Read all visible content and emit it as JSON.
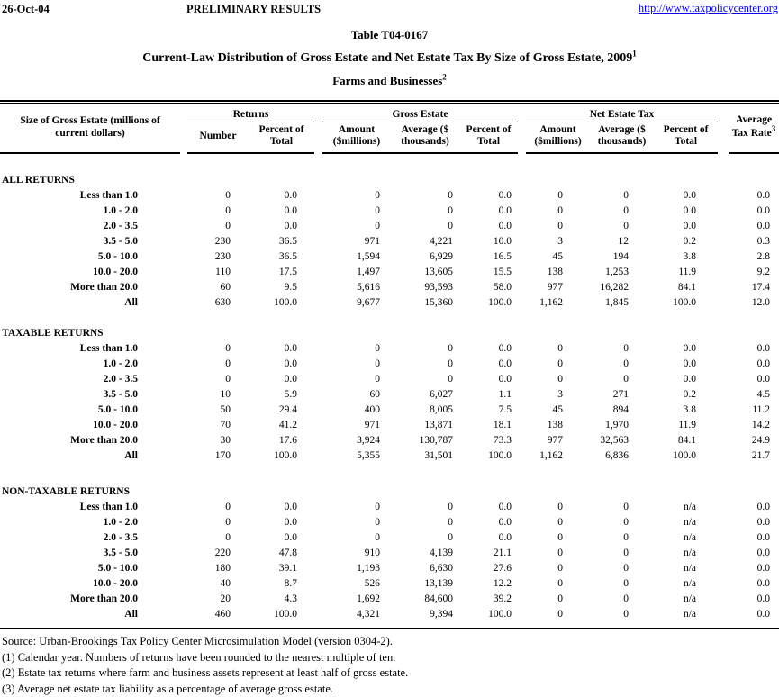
{
  "page": {
    "date": "26-Oct-04",
    "status_label": "PRELIMINARY RESULTS",
    "link": "http://www.taxpolicycenter.org",
    "link_color": "#0000EE"
  },
  "title": {
    "table_number": "Table T04-0167",
    "main": "Current-Law Distribution of Gross Estate and Net Estate Tax By Size of Gross Estate, 2009",
    "main_superscript": "1",
    "subtitle": "Farms and Businesses",
    "subtitle_superscript": "2"
  },
  "table": {
    "stub_header": "Size of Gross Estate (millions of current dollars)",
    "group_headers": {
      "returns": "Returns",
      "gross_estate": "Gross Estate",
      "net_estate_tax": "Net Estate Tax"
    },
    "sub_headers": {
      "number": "Number",
      "percent_of_total": "Percent of Total",
      "amount_millions": "Amount ($millions)",
      "average_thousands": "Average ($ thousands)"
    },
    "average_tax_rate_header": "Average Tax Rate",
    "average_tax_rate_superscript": "3",
    "sections": [
      {
        "label": "ALL RETURNS",
        "rows": [
          {
            "label": "Less than 1.0",
            "values": [
              "0",
              "0.0",
              "0",
              "0",
              "0.0",
              "0",
              "0",
              "0.0",
              "0.0"
            ]
          },
          {
            "label": "1.0 - 2.0",
            "values": [
              "0",
              "0.0",
              "0",
              "0",
              "0.0",
              "0",
              "0",
              "0.0",
              "0.0"
            ]
          },
          {
            "label": "2.0 - 3.5",
            "values": [
              "0",
              "0.0",
              "0",
              "0",
              "0.0",
              "0",
              "0",
              "0.0",
              "0.0"
            ]
          },
          {
            "label": "3.5 - 5.0",
            "values": [
              "230",
              "36.5",
              "971",
              "4,221",
              "10.0",
              "3",
              "12",
              "0.2",
              "0.3"
            ]
          },
          {
            "label": "5.0 - 10.0",
            "values": [
              "230",
              "36.5",
              "1,594",
              "6,929",
              "16.5",
              "45",
              "194",
              "3.8",
              "2.8"
            ]
          },
          {
            "label": "10.0 - 20.0",
            "values": [
              "110",
              "17.5",
              "1,497",
              "13,605",
              "15.5",
              "138",
              "1,253",
              "11.9",
              "9.2"
            ]
          },
          {
            "label": "More than 20.0",
            "values": [
              "60",
              "9.5",
              "5,616",
              "93,593",
              "58.0",
              "977",
              "16,282",
              "84.1",
              "17.4"
            ]
          },
          {
            "label": "All",
            "values": [
              "630",
              "100.0",
              "9,677",
              "15,360",
              "100.0",
              "1,162",
              "1,845",
              "100.0",
              "12.0"
            ]
          }
        ]
      },
      {
        "label": "TAXABLE RETURNS",
        "rows": [
          {
            "label": "Less than 1.0",
            "values": [
              "0",
              "0.0",
              "0",
              "0",
              "0.0",
              "0",
              "0",
              "0.0",
              "0.0"
            ]
          },
          {
            "label": "1.0 - 2.0",
            "values": [
              "0",
              "0.0",
              "0",
              "0",
              "0.0",
              "0",
              "0",
              "0.0",
              "0.0"
            ]
          },
          {
            "label": "2.0 - 3.5",
            "values": [
              "0",
              "0.0",
              "0",
              "0",
              "0.0",
              "0",
              "0",
              "0.0",
              "0.0"
            ]
          },
          {
            "label": "3.5 - 5.0",
            "values": [
              "10",
              "5.9",
              "60",
              "6,027",
              "1.1",
              "3",
              "271",
              "0.2",
              "4.5"
            ]
          },
          {
            "label": "5.0 - 10.0",
            "values": [
              "50",
              "29.4",
              "400",
              "8,005",
              "7.5",
              "45",
              "894",
              "3.8",
              "11.2"
            ]
          },
          {
            "label": "10.0 - 20.0",
            "values": [
              "70",
              "41.2",
              "971",
              "13,871",
              "18.1",
              "138",
              "1,970",
              "11.9",
              "14.2"
            ]
          },
          {
            "label": "More than 20.0",
            "values": [
              "30",
              "17.6",
              "3,924",
              "130,787",
              "73.3",
              "977",
              "32,563",
              "84.1",
              "24.9"
            ]
          },
          {
            "label": "All",
            "values": [
              "170",
              "100.0",
              "5,355",
              "31,501",
              "100.0",
              "1,162",
              "6,836",
              "100.0",
              "21.7"
            ]
          }
        ]
      },
      {
        "label": "NON-TAXABLE RETURNS",
        "rows": [
          {
            "label": "Less than 1.0",
            "values": [
              "0",
              "0.0",
              "0",
              "0",
              "0.0",
              "0",
              "0",
              "n/a",
              "0.0"
            ]
          },
          {
            "label": "1.0 - 2.0",
            "values": [
              "0",
              "0.0",
              "0",
              "0",
              "0.0",
              "0",
              "0",
              "n/a",
              "0.0"
            ]
          },
          {
            "label": "2.0 - 3.5",
            "values": [
              "0",
              "0.0",
              "0",
              "0",
              "0.0",
              "0",
              "0",
              "n/a",
              "0.0"
            ]
          },
          {
            "label": "3.5 - 5.0",
            "values": [
              "220",
              "47.8",
              "910",
              "4,139",
              "21.1",
              "0",
              "0",
              "n/a",
              "0.0"
            ]
          },
          {
            "label": "5.0 - 10.0",
            "values": [
              "180",
              "39.1",
              "1,193",
              "6,630",
              "27.6",
              "0",
              "0",
              "n/a",
              "0.0"
            ]
          },
          {
            "label": "10.0 - 20.0",
            "values": [
              "40",
              "8.7",
              "526",
              "13,139",
              "12.2",
              "0",
              "0",
              "n/a",
              "0.0"
            ]
          },
          {
            "label": "More than 20.0",
            "values": [
              "20",
              "4.3",
              "1,692",
              "84,600",
              "39.2",
              "0",
              "0",
              "n/a",
              "0.0"
            ]
          },
          {
            "label": "All",
            "values": [
              "460",
              "100.0",
              "4,321",
              "9,394",
              "100.0",
              "0",
              "0",
              "n/a",
              "0.0"
            ]
          }
        ]
      }
    ]
  },
  "footnotes": [
    "Source: Urban-Brookings Tax Policy Center Microsimulation Model (version 0304-2).",
    "(1) Calendar year. Numbers of returns have been rounded to the nearest multiple of ten.",
    "(2) Estate tax returns where farm and business assets represent at least half of gross estate.",
    "(3) Average net estate tax liability as a percentage of average gross estate."
  ]
}
